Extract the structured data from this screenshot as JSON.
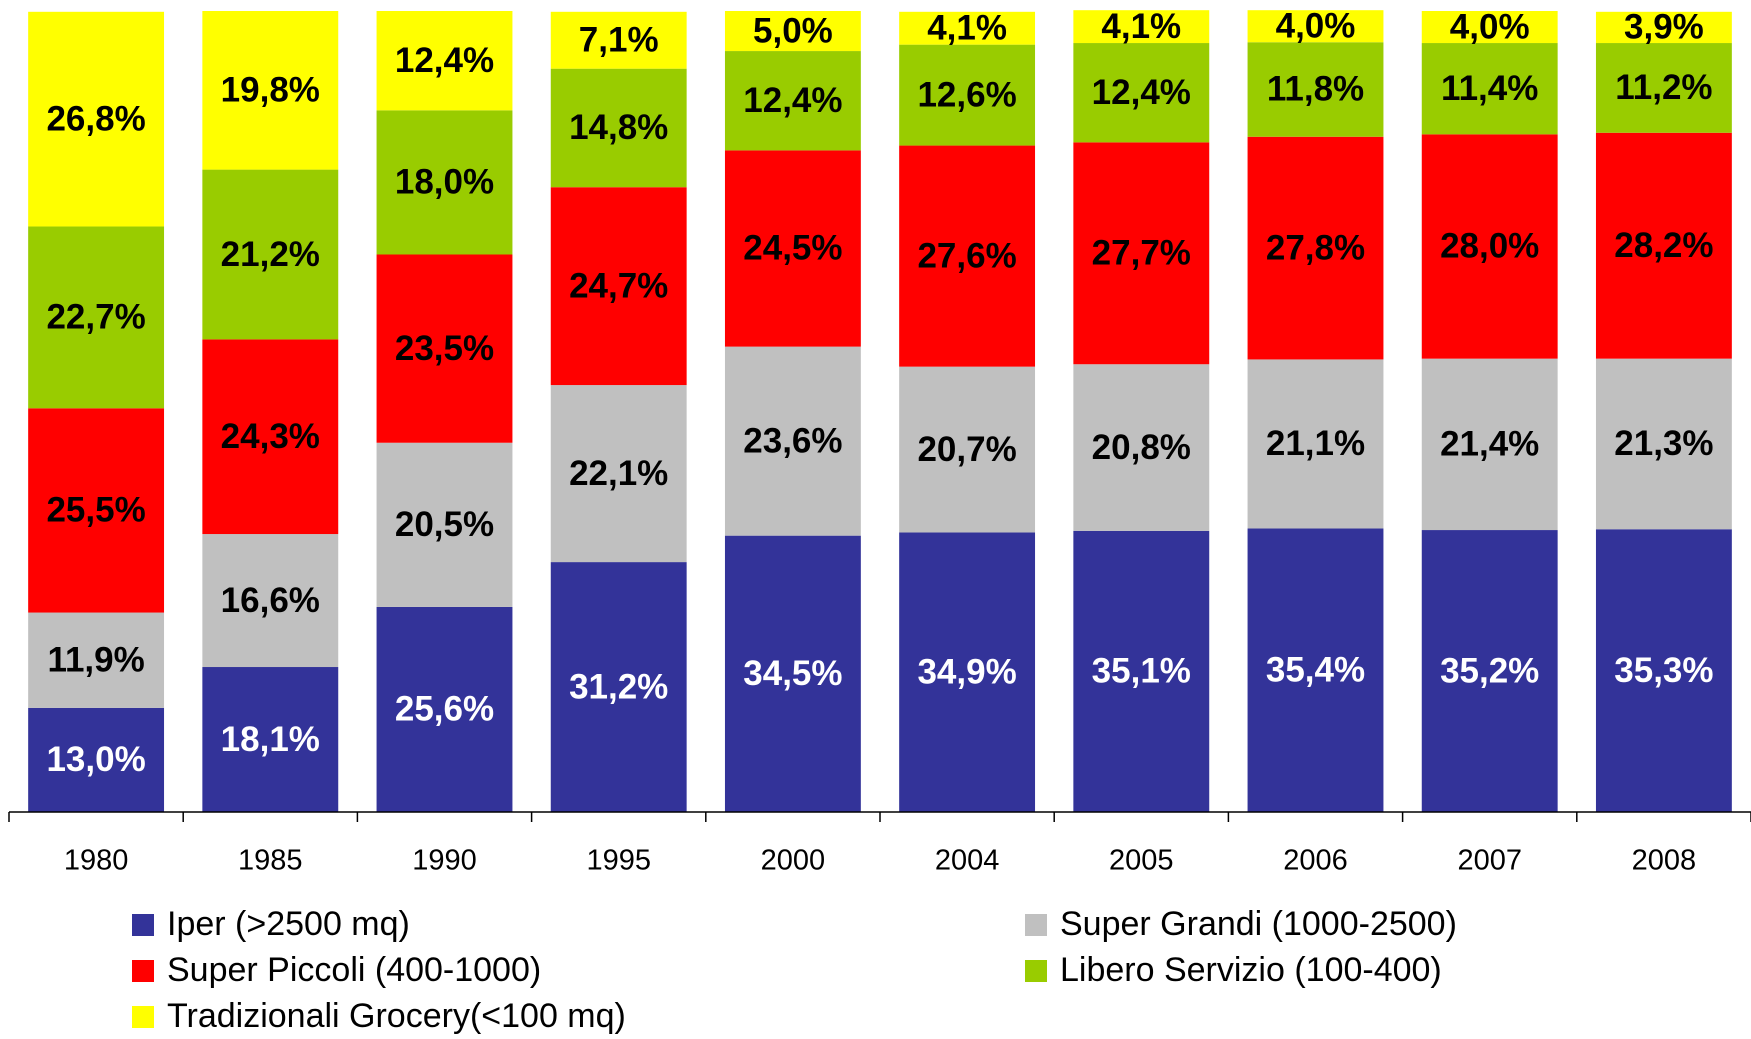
{
  "chart_data": {
    "type": "stacked_bar",
    "categories": [
      "1980",
      "1985",
      "1990",
      "1995",
      "2000",
      "2004",
      "2005",
      "2006",
      "2007",
      "2008"
    ],
    "ylim": [
      0,
      100
    ],
    "legend": "bottom",
    "series": [
      {
        "name": "Iper (>2500 mq)",
        "color": "#333399",
        "label_color": "#ffffff",
        "values": [
          13.0,
          18.1,
          25.6,
          31.2,
          34.5,
          34.9,
          35.1,
          35.4,
          35.2,
          35.3
        ],
        "value_labels": [
          "13,0%",
          "18,1%",
          "25,6%",
          "31,2%",
          "34,5%",
          "34,9%",
          "35,1%",
          "35,4%",
          "35,2%",
          "35,3%"
        ]
      },
      {
        "name": "Super Grandi (1000-2500)",
        "color": "#c0c0c0",
        "label_color": "#000000",
        "values": [
          11.9,
          16.6,
          20.5,
          22.1,
          23.6,
          20.7,
          20.8,
          21.1,
          21.4,
          21.3
        ],
        "value_labels": [
          "11,9%",
          "16,6%",
          "20,5%",
          "22,1%",
          "23,6%",
          "20,7%",
          "20,8%",
          "21,1%",
          "21,4%",
          "21,3%"
        ]
      },
      {
        "name": "Super Piccoli (400-1000)",
        "color": "#ff0000",
        "label_color": "#000000",
        "values": [
          25.5,
          24.3,
          23.5,
          24.7,
          24.5,
          27.6,
          27.7,
          27.8,
          28.0,
          28.2
        ],
        "value_labels": [
          "25,5%",
          "24,3%",
          "23,5%",
          "24,7%",
          "24,5%",
          "27,6%",
          "27,7%",
          "27,8%",
          "28,0%",
          "28,2%"
        ]
      },
      {
        "name": "Libero Servizio (100-400)",
        "color": "#99cc00",
        "label_color": "#000000",
        "values": [
          22.7,
          21.2,
          18.0,
          14.8,
          12.4,
          12.6,
          12.4,
          11.8,
          11.4,
          11.2
        ],
        "value_labels": [
          "22,7%",
          "21,2%",
          "18,0%",
          "14,8%",
          "12,4%",
          "12,6%",
          "12,4%",
          "11,8%",
          "11,4%",
          "11,2%"
        ]
      },
      {
        "name": "Tradizionali Grocery(<100 mq)",
        "color": "#ffff00",
        "label_color": "#000000",
        "values": [
          26.8,
          19.8,
          12.4,
          7.1,
          5.0,
          4.1,
          4.1,
          4.0,
          4.0,
          3.9
        ],
        "value_labels": [
          "26,8%",
          "19,8%",
          "12,4%",
          "7,1%",
          "5,0%",
          "4,1%",
          "4,1%",
          "4,0%",
          "4,0%",
          "3,9%"
        ]
      }
    ]
  }
}
